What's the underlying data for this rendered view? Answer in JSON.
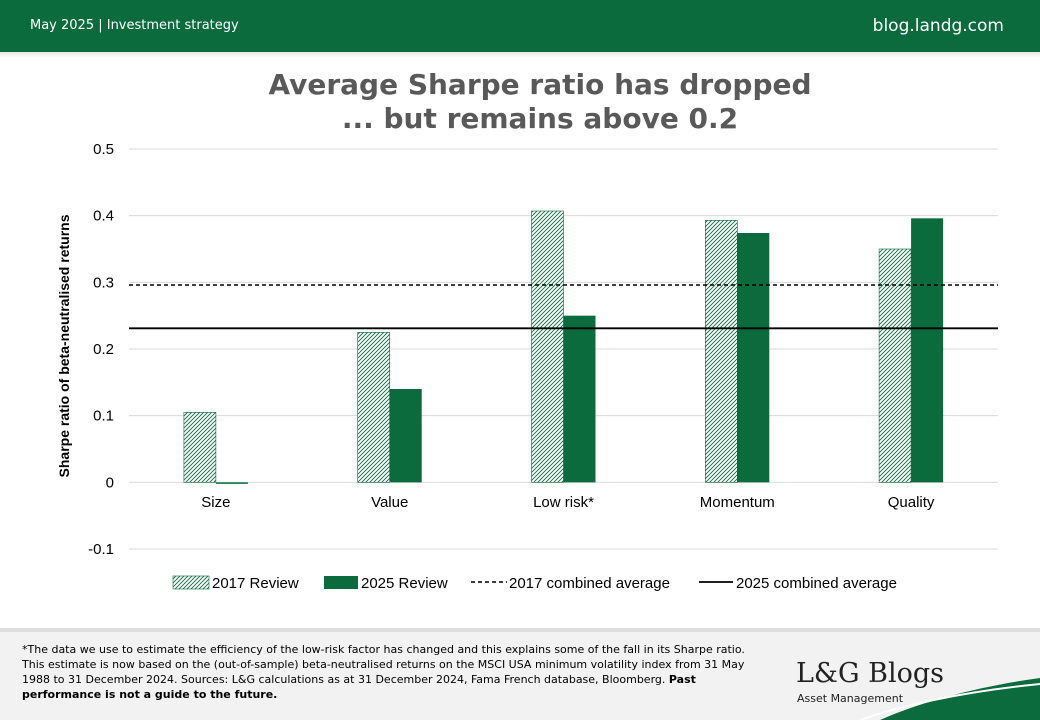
{
  "header": {
    "left_text": "May 2025 |  Investment strategy",
    "right_text": "blog.landg.com"
  },
  "chart_data": {
    "type": "bar",
    "title_line1": "Average Sharpe ratio has dropped",
    "title_line2": "... but remains above 0.2",
    "ylabel": "Sharpe ratio of beta-neutralised returns",
    "xlabel": "",
    "ylim": [
      -0.1,
      0.5
    ],
    "yticks": [
      0.5,
      0.4,
      0.3,
      0.2,
      0.1,
      0,
      -0.1
    ],
    "grid": true,
    "legend_placement": "bottom",
    "categories": [
      "Size",
      "Value",
      "Low risk*",
      "Momentum",
      "Quality"
    ],
    "series": [
      {
        "name": "2017 Review",
        "values": [
          0.105,
          0.225,
          0.407,
          0.393,
          0.35
        ],
        "color": "#0b6b3d",
        "style": "hatched"
      },
      {
        "name": "2025 Review",
        "values": [
          -0.002,
          0.14,
          0.25,
          0.374,
          0.396
        ],
        "color": "#0b6b3d",
        "style": "solid"
      }
    ],
    "reference_lines": [
      {
        "name": "2017 combined average",
        "value": 0.296,
        "style": "dashed",
        "color": "#000000"
      },
      {
        "name": "2025 combined average",
        "value": 0.231,
        "style": "solid",
        "color": "#000000"
      }
    ]
  },
  "footer": {
    "footnote_main": "*The data we use to estimate the efficiency of the low-risk factor has changed and this explains some of the fall in its Sharpe ratio. This estimate is now based on the (out-of-sample) beta-neutralised returns on the MSCI USA minimum volatility index from 31 May 1988 to 31 December 2024.  Sources: L&G calculations as at 31 December 2024, Fama French database, Bloomberg.",
    "footnote_bold": "Past performance is not a guide to the future.",
    "logo_main": "L&G Blogs",
    "logo_sub": "Asset Management"
  },
  "colors": {
    "brand_green": "#0b6b3d",
    "title_grey": "#595959",
    "grid_grey": "#d9d9d9"
  }
}
